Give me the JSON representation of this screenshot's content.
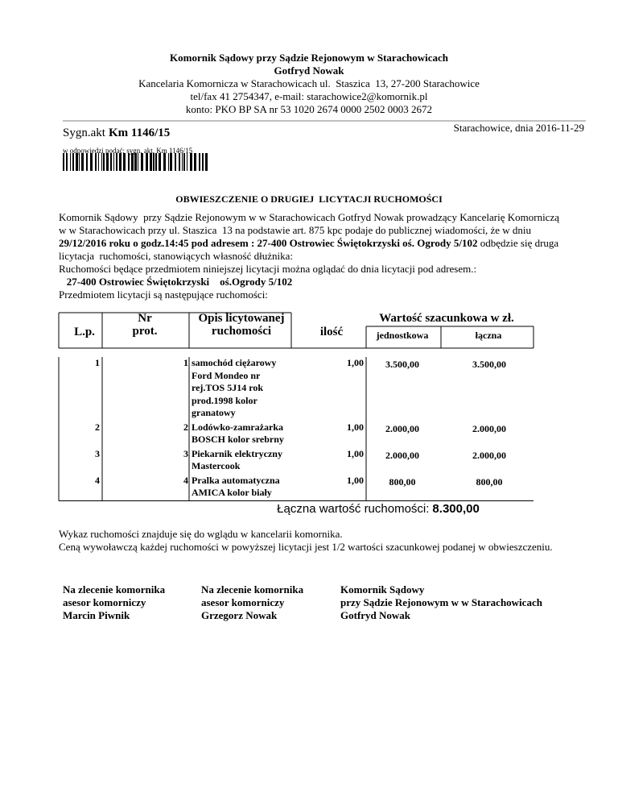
{
  "header": {
    "lines": [
      "Komornik Sądowy przy Sądzie Rejonowym w Starachowicach",
      "Gotfryd Nowak",
      "Kancelaria Komornicza w Starachowicach ul.  Staszica  13, 27-200 Starachowice",
      "tel/fax 41 2754347, e-mail: starachowice2@komornik.pl",
      "konto: PKO BP SA nr 53 1020 2674 0000 2502 0003 2672"
    ]
  },
  "case": {
    "label": "Sygn.akt",
    "number": "Km 1146/15",
    "place_date": "Starachowice, dnia 2016-11-29",
    "barcode_caption": "w odpowiedzi podać: sygn. akt. Km 1146/15"
  },
  "title": "OBWIESZCZENIE O DRUGIEJ  LICYTACJI RUCHOMOŚCI",
  "intro": [
    [
      {
        "text": "Komornik Sądowy  przy Sądzie Rejonowym w w Starachowicach Gotfryd Nowak prowadzący Kancelarię Komorniczą"
      }
    ],
    [
      {
        "text": "w w Starachowicach przy ul. Staszica  13 na podstawie art. 875 kpc podaje do publicznej wiadomości, że w dniu"
      }
    ],
    [
      {
        "text": "29/12/2016 roku o godz.14:45 pod adresem : 27-400 Ostrowiec Świętokrzyski oś. Ogrody 5/102",
        "bold": true
      },
      {
        "text": " odbędzie się druga"
      }
    ],
    [
      {
        "text": "licytacja  ruchomości, stanowiących własność dłużnika:"
      }
    ],
    [
      {
        "text": "Ruchomości będące przedmiotem niniejszej licytacji można oglądać do dnia licytacji pod adresem.:"
      }
    ],
    [
      {
        "text": "   27-400 Ostrowiec Świętokrzyski    oś.Ogrody 5/102",
        "bold": true
      }
    ],
    [
      {
        "text": "Przedmiotem licytacji są następujące ruchomości:"
      }
    ]
  ],
  "table": {
    "headers": {
      "lp": "L.p.",
      "nr": [
        "Nr",
        "prot."
      ],
      "desc": [
        "Opis licytowanej",
        "ruchomości"
      ],
      "qty": "ilość",
      "value": "Wartość szacunkowa w zł.",
      "unit": "jednostkowa",
      "total": "łączna"
    },
    "rows": [
      {
        "lp": "1",
        "nr": "1",
        "desc": [
          "samochód ciężarowy",
          "Ford Mondeo nr",
          "rej.TOS 5J14 rok",
          "prod.1998 kolor",
          "granatowy"
        ],
        "qty": "1,00",
        "unit": "3.500,00",
        "total": "3.500,00"
      },
      {
        "lp": "2",
        "nr": "2",
        "desc": [
          "Lodówko-zamrażarka",
          "BOSCH kolor srebrny"
        ],
        "qty": "1,00",
        "unit": "2.000,00",
        "total": "2.000,00"
      },
      {
        "lp": "3",
        "nr": "3",
        "desc": [
          "Piekarnik elektryczny",
          "Mastercook"
        ],
        "qty": "1,00",
        "unit": "2.000,00",
        "total": "2.000,00"
      },
      {
        "lp": "4",
        "nr": "4",
        "desc": [
          "Pralka automatyczna",
          "AMICA kolor biały"
        ],
        "qty": "1,00",
        "unit": "800,00",
        "total": "800,00"
      }
    ]
  },
  "sum": {
    "label": "Łączna wartość ruchomości:",
    "value": "8.300,00"
  },
  "notes": [
    "Wykaz ruchomości znajduje się do wglądu w kancelarii komornika.",
    "Ceną wywoławczą każdej ruchomości w powyższej licytacji jest 1/2 wartości szacunkowej podanej w obwieszczeniu."
  ],
  "signatures": [
    [
      "Na zlecenie komornika",
      "asesor komorniczy",
      "Marcin Piwnik"
    ],
    [
      "Na zlecenie komornika",
      "asesor komorniczy",
      "Grzegorz Nowak"
    ],
    [
      "Komornik Sądowy",
      "przy Sądzie Rejonowym w w Starachowicach",
      "Gotfryd Nowak"
    ]
  ]
}
